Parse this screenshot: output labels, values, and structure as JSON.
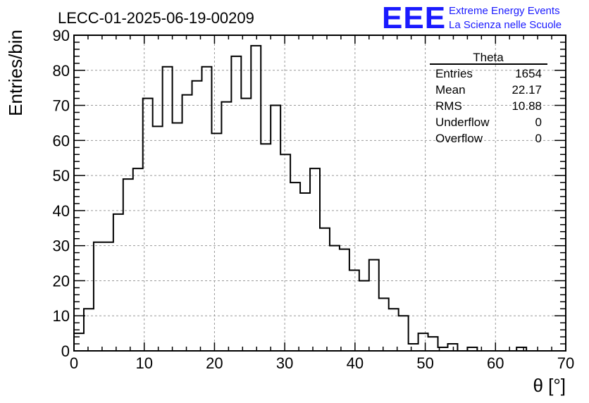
{
  "title": "LECC-01-2025-06-19-00209",
  "logo": {
    "mark": "EEE",
    "line1": "Extreme Energy Events",
    "line2": "La Scienza nelle Scuole",
    "color": "#1a1aff"
  },
  "stats": {
    "name": "Theta",
    "rows": [
      {
        "label": "Entries",
        "value": "1654"
      },
      {
        "label": "Mean",
        "value": "22.17"
      },
      {
        "label": "RMS",
        "value": "10.88"
      },
      {
        "label": "Underflow",
        "value": "0"
      },
      {
        "label": "Overflow",
        "value": "0"
      }
    ]
  },
  "chart_data": {
    "type": "histogram",
    "xlabel": "θ [°]",
    "ylabel": "Entries/bin",
    "xlim": [
      0,
      70
    ],
    "ylim": [
      0,
      90
    ],
    "grid": true,
    "bin_width": 1.4,
    "x_ticks": [
      0,
      10,
      20,
      30,
      40,
      50,
      60,
      70
    ],
    "y_ticks": [
      0,
      10,
      20,
      30,
      40,
      50,
      60,
      70,
      80,
      90
    ],
    "bin_edges_start": 0,
    "values": [
      5,
      12,
      31,
      31,
      39,
      49,
      52,
      72,
      64,
      81,
      65,
      73,
      77,
      81,
      62,
      71,
      84,
      72,
      87,
      59,
      70,
      56,
      48,
      45,
      52,
      35,
      30,
      29,
      23,
      20,
      26,
      15,
      12,
      10,
      2,
      5,
      4,
      1,
      2,
      0,
      1,
      0,
      0,
      0,
      0,
      1,
      0,
      0,
      0,
      0
    ],
    "line_color": "#000000"
  }
}
